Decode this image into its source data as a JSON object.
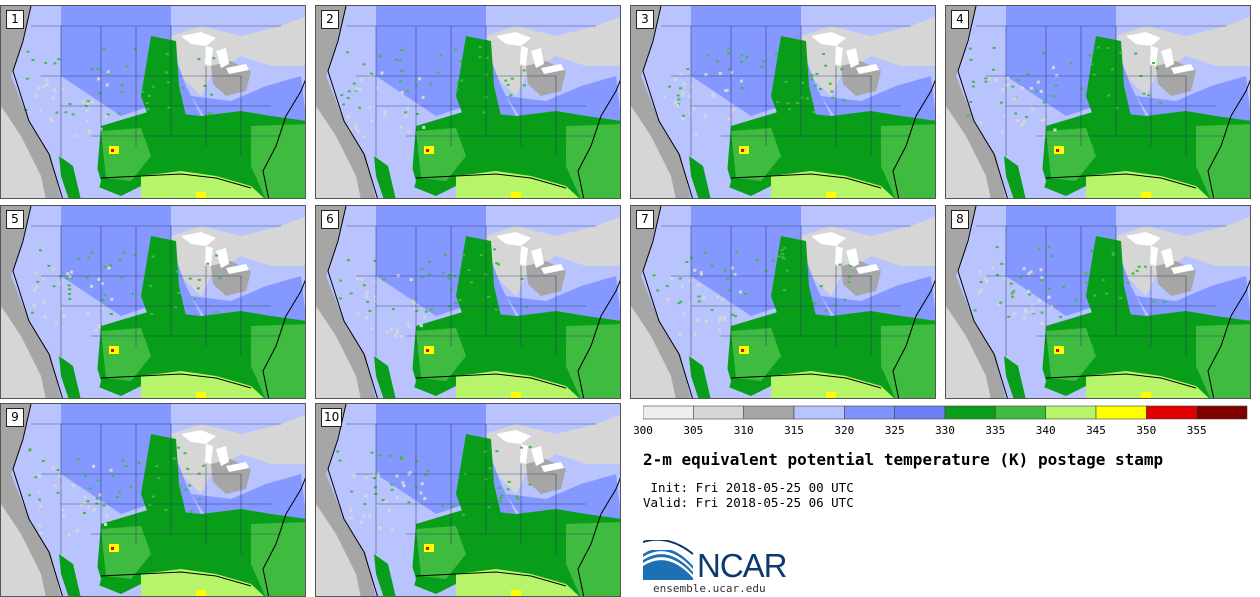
{
  "title": "2-m equivalent potential temperature (K) postage stamp",
  "init": "Init: Fri 2018-05-25 00 UTC",
  "valid": "Valid: Fri 2018-05-25 06 UTC",
  "logo_text": "NCAR",
  "url": "ensemble.ucar.edu",
  "members": [
    "1",
    "2",
    "3",
    "4",
    "5",
    "6",
    "7",
    "8",
    "9",
    "10"
  ],
  "colorbar": {
    "ticks": [
      "300",
      "305",
      "310",
      "315",
      "320",
      "325",
      "330",
      "335",
      "340",
      "345",
      "350",
      "355"
    ],
    "colors": [
      "#eeeeee",
      "#d6d6d6",
      "#a6a6a6",
      "#b9c4ff",
      "#7f93ff",
      "#6c80f5",
      "#089e19",
      "#3fbc3f",
      "#b6f46a",
      "#ffff00",
      "#e00000",
      "#800000"
    ]
  },
  "map_colors": {
    "ocean_gray": "#a6a6a6",
    "light_gray": "#d6d6d6",
    "pale_blue": "#b9c4ff",
    "mid_blue": "#7f93ff",
    "dark_green": "#089e19",
    "green": "#3fbc3f",
    "light_green": "#b6f46a",
    "yellow": "#ffff00",
    "red": "#e00000"
  }
}
